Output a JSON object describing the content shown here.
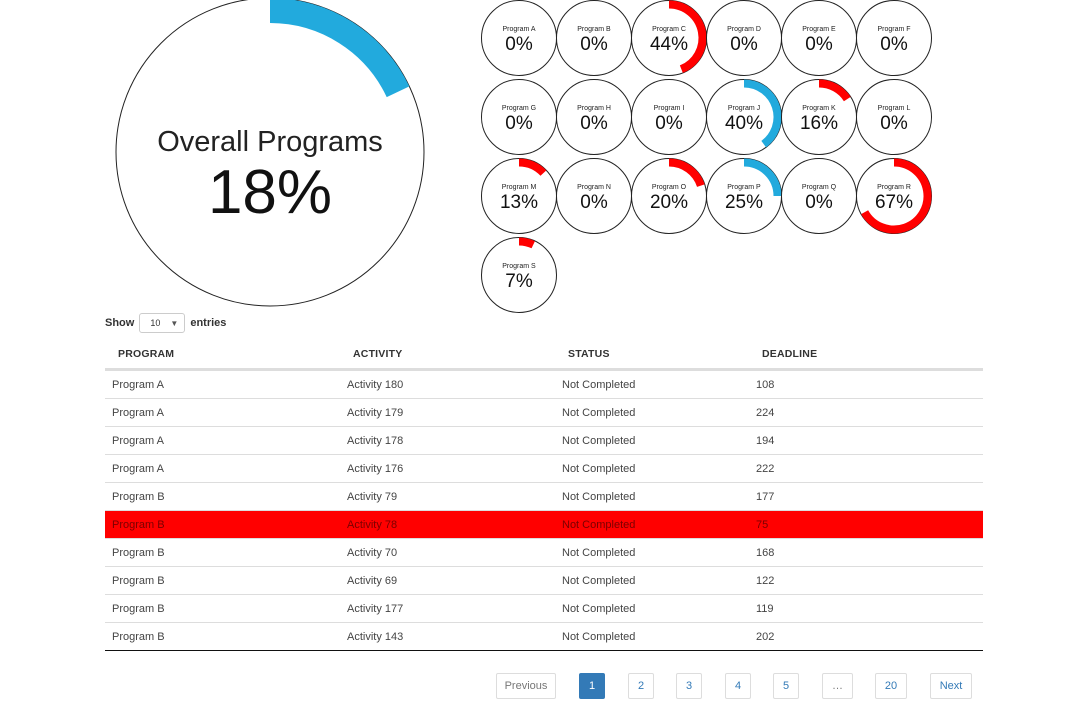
{
  "overall": {
    "label": "Overall Programs",
    "percent": 18,
    "percent_text": "18%",
    "color": "#22aadd"
  },
  "programs": [
    {
      "name": "Program A",
      "percent": 0,
      "text": "0%",
      "color": "#ff0000"
    },
    {
      "name": "Program B",
      "percent": 0,
      "text": "0%",
      "color": "#ff0000"
    },
    {
      "name": "Program C",
      "percent": 44,
      "text": "44%",
      "color": "#ff0000"
    },
    {
      "name": "Program D",
      "percent": 0,
      "text": "0%",
      "color": "#ff0000"
    },
    {
      "name": "Program E",
      "percent": 0,
      "text": "0%",
      "color": "#ff0000"
    },
    {
      "name": "Program F",
      "percent": 0,
      "text": "0%",
      "color": "#ff0000"
    },
    {
      "name": "Program G",
      "percent": 0,
      "text": "0%",
      "color": "#ff0000"
    },
    {
      "name": "Program H",
      "percent": 0,
      "text": "0%",
      "color": "#ff0000"
    },
    {
      "name": "Program I",
      "percent": 0,
      "text": "0%",
      "color": "#ff0000"
    },
    {
      "name": "Program J",
      "percent": 40,
      "text": "40%",
      "color": "#22aadd"
    },
    {
      "name": "Program K",
      "percent": 16,
      "text": "16%",
      "color": "#ff0000"
    },
    {
      "name": "Program L",
      "percent": 0,
      "text": "0%",
      "color": "#ff0000"
    },
    {
      "name": "Program M",
      "percent": 13,
      "text": "13%",
      "color": "#ff0000"
    },
    {
      "name": "Program N",
      "percent": 0,
      "text": "0%",
      "color": "#ff0000"
    },
    {
      "name": "Program O",
      "percent": 20,
      "text": "20%",
      "color": "#ff0000"
    },
    {
      "name": "Program P",
      "percent": 25,
      "text": "25%",
      "color": "#22aadd"
    },
    {
      "name": "Program Q",
      "percent": 0,
      "text": "0%",
      "color": "#ff0000"
    },
    {
      "name": "Program R",
      "percent": 67,
      "text": "67%",
      "color": "#ff0000"
    },
    {
      "name": "Program S",
      "percent": 7,
      "text": "7%",
      "color": "#ff0000"
    }
  ],
  "entries": {
    "show": "Show",
    "value": "10",
    "suffix": "entries"
  },
  "table": {
    "headers": [
      "PROGRAM",
      "ACTIVITY",
      "STATUS",
      "DEADLINE"
    ],
    "highlight_color": "#ff0000",
    "rows": [
      {
        "program": "Program A",
        "activity": "Activity 180",
        "status": "Not Completed",
        "deadline": "108",
        "highlight": false
      },
      {
        "program": "Program A",
        "activity": "Activity 179",
        "status": "Not Completed",
        "deadline": "224",
        "highlight": false
      },
      {
        "program": "Program A",
        "activity": "Activity 178",
        "status": "Not Completed",
        "deadline": "194",
        "highlight": false
      },
      {
        "program": "Program A",
        "activity": "Activity 176",
        "status": "Not Completed",
        "deadline": "222",
        "highlight": false
      },
      {
        "program": "Program B",
        "activity": "Activity 79",
        "status": "Not Completed",
        "deadline": "177",
        "highlight": false
      },
      {
        "program": "Program B",
        "activity": "Activity 78",
        "status": "Not Completed",
        "deadline": "75",
        "highlight": true
      },
      {
        "program": "Program B",
        "activity": "Activity 70",
        "status": "Not Completed",
        "deadline": "168",
        "highlight": false
      },
      {
        "program": "Program B",
        "activity": "Activity 69",
        "status": "Not Completed",
        "deadline": "122",
        "highlight": false
      },
      {
        "program": "Program B",
        "activity": "Activity 177",
        "status": "Not Completed",
        "deadline": "119",
        "highlight": false
      },
      {
        "program": "Program B",
        "activity": "Activity 143",
        "status": "Not Completed",
        "deadline": "202",
        "highlight": false
      }
    ]
  },
  "pagination": {
    "previous": "Previous",
    "pages": [
      "1",
      "2",
      "3",
      "4",
      "5",
      "…",
      "20"
    ],
    "current": "1",
    "next": "Next"
  }
}
